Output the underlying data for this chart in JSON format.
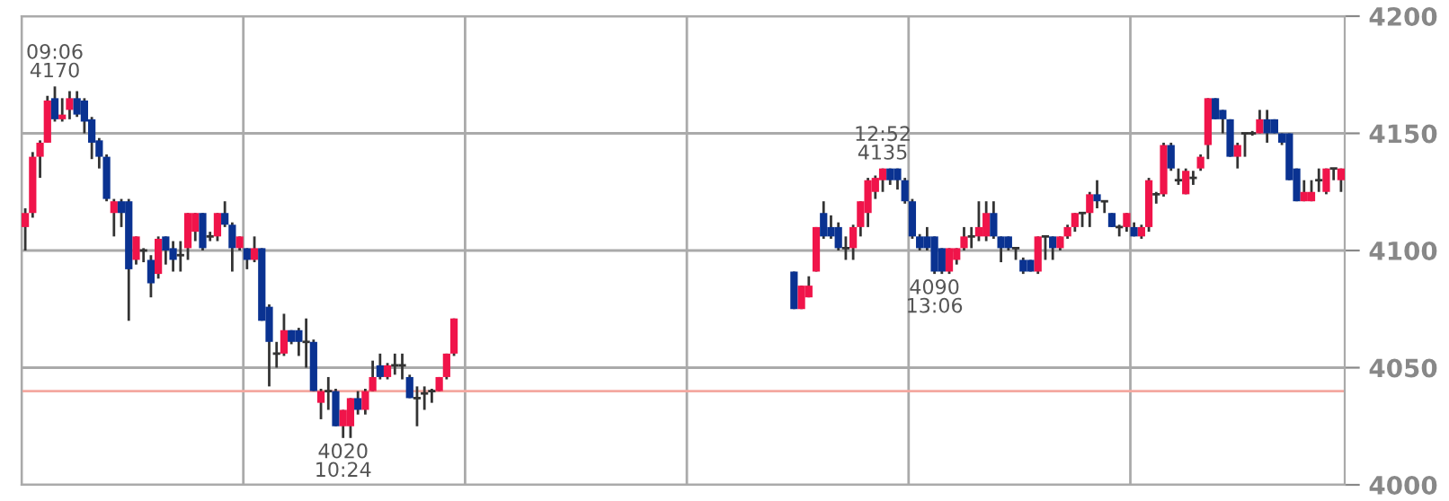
{
  "chart_data": {
    "type": "candlestick",
    "categories": [
      null,
      null,
      null,
      null,
      null,
      null,
      null,
      null,
      null,
      null,
      null,
      null,
      null,
      null,
      null,
      null,
      null,
      null,
      null,
      null,
      null,
      null,
      null,
      null,
      null,
      null,
      null,
      null,
      null,
      null,
      null,
      null,
      null,
      null,
      null,
      null,
      null,
      null,
      null,
      null,
      null,
      null,
      null,
      null,
      null,
      null,
      null,
      null,
      null,
      null,
      null,
      null,
      null,
      null,
      null,
      null,
      null,
      null,
      null,
      null,
      null,
      null,
      null,
      null,
      null,
      null,
      null,
      null,
      null,
      null,
      null,
      null,
      null,
      null,
      null,
      null,
      null,
      null,
      null,
      null,
      null,
      null,
      null,
      null,
      null,
      null,
      null,
      null,
      null,
      null,
      null,
      null,
      null,
      null,
      null,
      null,
      null,
      null,
      null,
      null,
      null,
      null,
      null,
      null,
      null,
      null,
      null,
      null,
      null,
      null,
      null,
      null,
      null,
      null,
      null,
      null,
      null,
      null,
      null,
      null,
      null,
      null,
      null,
      null,
      null,
      null,
      null,
      null,
      null,
      null,
      null,
      null,
      null,
      null,
      null,
      null,
      null,
      null,
      null,
      null,
      null,
      null,
      null,
      null,
      null,
      null,
      null,
      null,
      null,
      null,
      null,
      null,
      null,
      null,
      null,
      null,
      null,
      null,
      null,
      null,
      null,
      null,
      null,
      null,
      null,
      null,
      null,
      null,
      null,
      null,
      null,
      null,
      null,
      null,
      null,
      null,
      null,
      null,
      null
    ],
    "ohlc": [
      [
        4110,
        4118,
        4100,
        4116
      ],
      [
        4116,
        4142,
        4114,
        4140
      ],
      [
        4140,
        4147,
        4131,
        4146
      ],
      [
        4146,
        4166,
        4146,
        4164
      ],
      [
        4165,
        4170,
        4155,
        4156
      ],
      [
        4156,
        4165,
        4155,
        4158
      ],
      [
        4160,
        4168,
        4156,
        4165
      ],
      [
        4165,
        4168,
        4157,
        4158
      ],
      [
        4164,
        4165,
        4150,
        4155
      ],
      [
        4156,
        4157,
        4139,
        4146
      ],
      [
        4147,
        4148,
        4135,
        4140
      ],
      [
        4140,
        4141,
        4121,
        4122
      ],
      [
        4116,
        4122,
        4106,
        4121
      ],
      [
        4121,
        4122,
        4110,
        4116
      ],
      [
        4121,
        4122,
        4070,
        4092
      ],
      [
        4096,
        4106,
        4094,
        4106
      ],
      [
        4100,
        4101,
        4095,
        4100
      ],
      [
        4096,
        4098,
        4080,
        4086
      ],
      [
        4090,
        4106,
        4088,
        4105
      ],
      [
        4106,
        4106,
        4094,
        4100
      ],
      [
        4101,
        4104,
        4091,
        4096
      ],
      [
        4098,
        4104,
        4091,
        4098
      ],
      [
        4101,
        4116,
        4096,
        4116
      ],
      [
        4108,
        4116,
        4104,
        4116
      ],
      [
        4116,
        4116,
        4100,
        4101
      ],
      [
        4106,
        4108,
        4104,
        4106
      ],
      [
        4106,
        4116,
        4104,
        4116
      ],
      [
        4116,
        4121,
        4110,
        4111
      ],
      [
        4111,
        4112,
        4091,
        4101
      ],
      [
        4101,
        4106,
        4100,
        4106
      ],
      [
        4101,
        4101,
        4092,
        4096
      ],
      [
        4096,
        4106,
        4095,
        4101
      ],
      [
        4101,
        4101,
        4070,
        4070
      ],
      [
        4076,
        4077,
        4042,
        4061
      ],
      [
        4056,
        4061,
        4050,
        4056
      ],
      [
        4056,
        4073,
        4055,
        4066
      ],
      [
        4066,
        4066,
        4060,
        4061
      ],
      [
        4066,
        4067,
        4055,
        4061
      ],
      [
        4061,
        4071,
        4050,
        4061
      ],
      [
        4061,
        4062,
        4040,
        4040
      ],
      [
        4035,
        4041,
        4028,
        4040
      ],
      [
        4040,
        4046,
        4032,
        4040
      ],
      [
        4040,
        4041,
        4025,
        4025
      ],
      [
        4025,
        4032,
        4020,
        4032
      ],
      [
        4025,
        4037,
        4020,
        4037
      ],
      [
        4037,
        4040,
        4030,
        4032
      ],
      [
        4032,
        4041,
        4030,
        4040
      ],
      [
        4040,
        4053,
        4040,
        4046
      ],
      [
        4051,
        4056,
        4045,
        4046
      ],
      [
        4046,
        4052,
        4045,
        4051
      ],
      [
        4051,
        4056,
        4047,
        4051
      ],
      [
        4051,
        4056,
        4045,
        4051
      ],
      [
        4046,
        4047,
        4037,
        4037
      ],
      [
        4037,
        4042,
        4025,
        4037
      ],
      [
        4039,
        4042,
        4032,
        4039
      ],
      [
        4040,
        4041,
        4035,
        4040
      ],
      [
        4040,
        4046,
        4040,
        4046
      ],
      [
        4046,
        4056,
        4045,
        4056
      ],
      [
        4056,
        4071,
        4055,
        4071
      ],
      null,
      null,
      null,
      null,
      null,
      null,
      null,
      null,
      null,
      null,
      null,
      null,
      null,
      null,
      null,
      null,
      null,
      null,
      null,
      null,
      null,
      null,
      null,
      null,
      null,
      null,
      null,
      null,
      null,
      null,
      null,
      null,
      null,
      null,
      null,
      null,
      null,
      null,
      null,
      null,
      null,
      null,
      null,
      null,
      null,
      [
        4091,
        4091,
        4075,
        4075
      ],
      [
        4075,
        4085,
        4075,
        4085
      ],
      [
        4080,
        4089,
        4080,
        4085
      ],
      [
        4091,
        4110,
        4091,
        4110
      ],
      [
        4116,
        4121,
        4105,
        4106
      ],
      [
        4110,
        4115,
        4105,
        4106
      ],
      [
        4110,
        4112,
        4100,
        4101
      ],
      [
        4101,
        4106,
        4096,
        4101
      ],
      [
        4101,
        4111,
        4096,
        4110
      ],
      [
        4110,
        4121,
        4106,
        4121
      ],
      [
        4116,
        4131,
        4110,
        4130
      ],
      [
        4125,
        4132,
        4122,
        4131
      ],
      [
        4130,
        4135,
        4125,
        4135
      ],
      [
        4135,
        4135,
        4128,
        4130
      ],
      [
        4135,
        4135,
        4126,
        4130
      ],
      [
        4130,
        4131,
        4120,
        4121
      ],
      [
        4121,
        4122,
        4105,
        4106
      ],
      [
        4106,
        4107,
        4100,
        4101
      ],
      [
        4106,
        4110,
        4100,
        4101
      ],
      [
        4106,
        4106,
        4090,
        4091
      ],
      [
        4101,
        4101,
        4090,
        4091
      ],
      [
        4091,
        4101,
        4090,
        4101
      ],
      [
        4096,
        4101,
        4094,
        4101
      ],
      [
        4101,
        4110,
        4100,
        4106
      ],
      [
        4106,
        4110,
        4101,
        4106
      ],
      [
        4106,
        4121,
        4104,
        4110
      ],
      [
        4106,
        4121,
        4104,
        4116
      ],
      [
        4116,
        4121,
        4105,
        4106
      ],
      [
        4106,
        4106,
        4095,
        4101
      ],
      [
        4106,
        4106,
        4100,
        4101
      ],
      [
        4101,
        4101,
        4096,
        4101
      ],
      [
        4096,
        4097,
        4090,
        4091
      ],
      [
        4096,
        4096,
        4091,
        4091
      ],
      [
        4091,
        4106,
        4090,
        4106
      ],
      [
        4106,
        4106,
        4096,
        4106
      ],
      [
        4106,
        4106,
        4096,
        4101
      ],
      [
        4101,
        4106,
        4100,
        4106
      ],
      [
        4106,
        4111,
        4105,
        4110
      ],
      [
        4110,
        4116,
        4108,
        4116
      ],
      [
        4116,
        4116,
        4110,
        4116
      ],
      [
        4116,
        4125,
        4110,
        4124
      ],
      [
        4124,
        4130,
        4118,
        4121
      ],
      [
        4121,
        4121,
        4116,
        4121
      ],
      [
        4116,
        4116,
        4110,
        4110
      ],
      [
        4110,
        4111,
        4106,
        4110
      ],
      [
        4110,
        4116,
        4108,
        4116
      ],
      [
        4110,
        4112,
        4106,
        4106
      ],
      [
        4106,
        4111,
        4105,
        4110
      ],
      [
        4110,
        4131,
        4108,
        4130
      ],
      [
        4124,
        4125,
        4120,
        4124
      ],
      [
        4124,
        4146,
        4123,
        4145
      ],
      [
        4145,
        4146,
        4134,
        4135
      ],
      [
        4130,
        4135,
        4128,
        4130
      ],
      [
        4124,
        4135,
        4124,
        4134
      ],
      [
        4131,
        4134,
        4128,
        4131
      ],
      [
        4135,
        4141,
        4134,
        4140
      ],
      [
        4145,
        4165,
        4139,
        4165
      ],
      [
        4165,
        4165,
        4156,
        4156
      ],
      [
        4160,
        4160,
        4150,
        4156
      ],
      [
        4156,
        4156,
        4140,
        4140
      ],
      [
        4140,
        4146,
        4135,
        4145
      ],
      [
        4150,
        4150,
        4140,
        4150
      ],
      [
        4150,
        4151,
        4149,
        4150
      ],
      [
        4150,
        4160,
        4150,
        4156
      ],
      [
        4156,
        4160,
        4146,
        4150
      ],
      [
        4156,
        4156,
        4150,
        4150
      ],
      [
        4150,
        4150,
        4145,
        4146
      ],
      [
        4150,
        4150,
        4130,
        4130
      ],
      [
        4135,
        4135,
        4121,
        4121
      ],
      [
        4121,
        4130,
        4121,
        4125
      ],
      [
        4121,
        4130,
        4121,
        4125
      ],
      [
        4130,
        4135,
        4125,
        4130
      ],
      [
        4125,
        4135,
        4124,
        4135
      ],
      [
        4135,
        4135,
        4130,
        4135
      ],
      [
        4130,
        4135,
        4125,
        4135
      ]
    ],
    "colors": [
      "#f0144a",
      "#f0144a",
      "#f0144a",
      "#f0144a",
      "#0a3291",
      "#f0144a",
      "#f0144a",
      "#0a3291",
      "#0a3291",
      "#0a3291",
      "#0a3291",
      "#0a3291",
      "#f0144a",
      "#0a3291",
      "#0a3291",
      "#f0144a",
      "#333333",
      "#0a3291",
      "#f0144a",
      "#0a3291",
      "#0a3291",
      "#333333",
      "#f0144a",
      "#f0144a",
      "#0a3291",
      "#333333",
      "#f0144a",
      "#0a3291",
      "#0a3291",
      "#f0144a",
      "#0a3291",
      "#f0144a",
      "#0a3291",
      "#0a3291",
      "#333333",
      "#f0144a",
      "#0a3291",
      "#0a3291",
      "#333333",
      "#0a3291",
      "#f0144a",
      "#333333",
      "#0a3291",
      "#f0144a",
      "#f0144a",
      "#0a3291",
      "#f0144a",
      "#f0144a",
      "#0a3291",
      "#f0144a",
      "#333333",
      "#333333",
      "#0a3291",
      "#333333",
      "#333333",
      "#333333",
      "#f0144a",
      "#f0144a",
      "#f0144a",
      null,
      null,
      null,
      null,
      null,
      null,
      null,
      null,
      null,
      null,
      null,
      null,
      null,
      null,
      null,
      null,
      null,
      null,
      null,
      null,
      null,
      null,
      null,
      null,
      null,
      null,
      null,
      null,
      null,
      null,
      null,
      null,
      null,
      null,
      null,
      null,
      null,
      null,
      null,
      null,
      null,
      null,
      null,
      null,
      null,
      "#0a3291",
      "#f0144a",
      "#f0144a",
      "#f0144a",
      "#0a3291",
      "#0a3291",
      "#0a3291",
      "#333333",
      "#f0144a",
      "#f0144a",
      "#f0144a",
      "#f0144a",
      "#f0144a",
      "#0a3291",
      "#0a3291",
      "#0a3291",
      "#0a3291",
      "#0a3291",
      "#0a3291",
      "#0a3291",
      "#0a3291",
      "#f0144a",
      "#f0144a",
      "#f0144a",
      "#333333",
      "#f0144a",
      "#f0144a",
      "#0a3291",
      "#0a3291",
      "#0a3291",
      "#333333",
      "#0a3291",
      "#0a3291",
      "#f0144a",
      "#333333",
      "#0a3291",
      "#f0144a",
      "#f0144a",
      "#f0144a",
      "#333333",
      "#f0144a",
      "#0a3291",
      "#333333",
      "#0a3291",
      "#333333",
      "#f0144a",
      "#0a3291",
      "#f0144a",
      "#f0144a",
      "#333333",
      "#f0144a",
      "#0a3291",
      "#333333",
      "#f0144a",
      "#333333",
      "#f0144a",
      "#f0144a",
      "#0a3291",
      "#0a3291",
      "#0a3291",
      "#f0144a",
      "#333333",
      "#333333",
      "#f0144a",
      "#0a3291",
      "#0a3291",
      "#0a3291",
      "#0a3291",
      "#0a3291",
      "#f0144a",
      "#f0144a",
      "#333333",
      "#f0144a",
      "#333333",
      "#f0144a"
    ],
    "ylim": [
      4000,
      4200
    ],
    "yticks": [
      4000,
      4050,
      4100,
      4150,
      4200
    ],
    "grid": true,
    "tick_labels": "y",
    "ref_lines": [
      {
        "axis": "y",
        "value": 4040,
        "color": "#f4a8a0"
      }
    ],
    "annotations": [
      {
        "text": "09:06\n4170",
        "y": 4170
      },
      {
        "text": "4020\n10:24",
        "y": 4020
      },
      {
        "text": "12:52\n4135",
        "y": 4135
      },
      {
        "text": "4090\n13:06",
        "y": 4090
      }
    ]
  }
}
